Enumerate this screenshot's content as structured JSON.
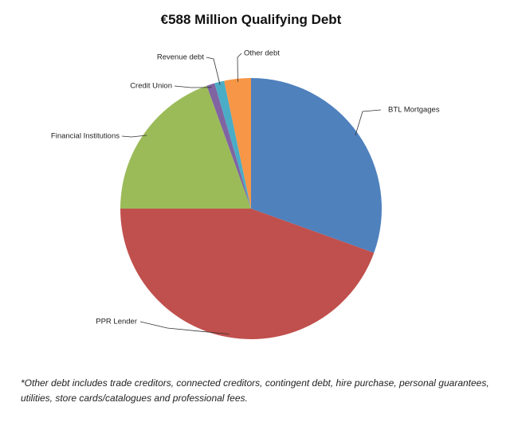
{
  "chart_data": {
    "type": "pie",
    "title": "€588 Million Qualifying Debt",
    "categories": [
      "BTL Mortgages",
      "PPR Lender",
      "Financial Institutions",
      "Credit Union",
      "Revenue debt",
      "Other debt"
    ],
    "values": [
      30.5,
      44.5,
      19.5,
      1,
      1.2,
      3.3
    ],
    "colors": [
      "#4f81bd",
      "#c0504d",
      "#9bbb59",
      "#8064a2",
      "#4bacc6",
      "#f79646"
    ],
    "footnote": "*Other debt includes trade creditors, connected creditors, contingent debt, hire purchase, personal guarantees, utilities, store cards/catalogues and professional fees."
  }
}
